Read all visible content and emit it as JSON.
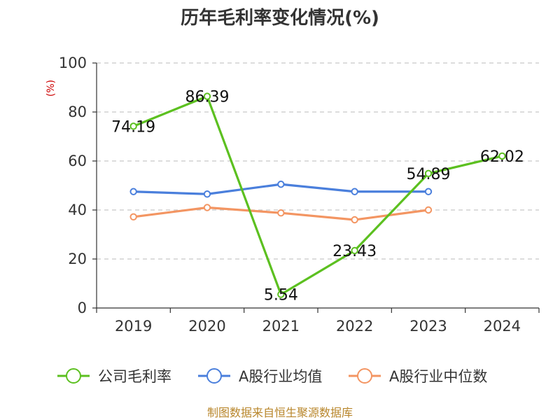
{
  "source_text": "制图数据来自恒生聚源数据库",
  "chart_data": {
    "type": "line",
    "title": "历年毛利率变化情况(%)",
    "ylabel": "(%)",
    "xlabel": "",
    "categories": [
      "2019",
      "2020",
      "2021",
      "2022",
      "2023",
      "2024"
    ],
    "ylim": [
      0,
      100
    ],
    "yticks": [
      "0",
      "20",
      "40",
      "60",
      "80",
      "100"
    ],
    "grid": true,
    "legend_position": "bottom",
    "series": [
      {
        "name": "公司毛利率",
        "color": "#5cc020",
        "values": [
          74.19,
          86.39,
          5.54,
          23.43,
          54.89,
          62.02
        ],
        "labels": [
          "74.19",
          "86.39",
          "5.54",
          "23.43",
          "54.89",
          "62.02"
        ]
      },
      {
        "name": "A股行业均值",
        "color": "#4a7fdc",
        "values": [
          47.5,
          46.5,
          50.5,
          47.5,
          47.5,
          null
        ]
      },
      {
        "name": "A股行业中位数",
        "color": "#f39562",
        "values": [
          37.2,
          41.0,
          38.8,
          36.0,
          40.0,
          null
        ]
      }
    ]
  }
}
